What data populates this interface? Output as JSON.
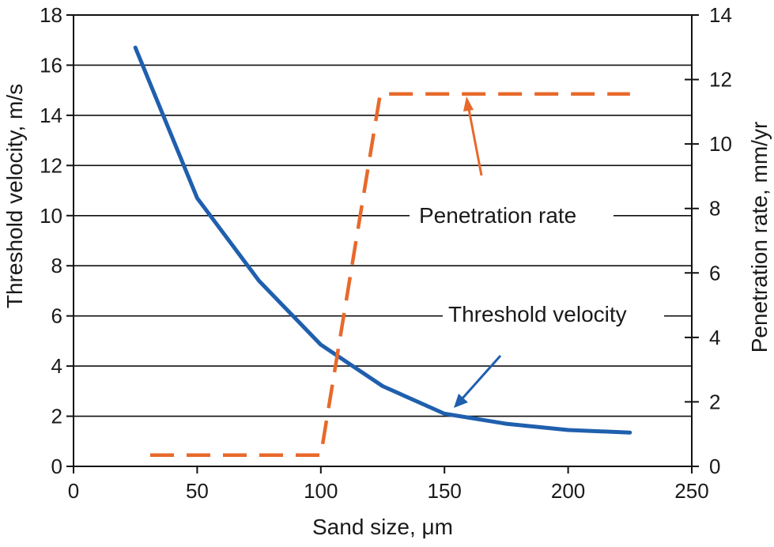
{
  "chart_data": {
    "type": "line",
    "title": "",
    "xlabel": "Sand size, μm",
    "ylabel_left": "Threshold velocity, m/s",
    "ylabel_right": "Penetration rate, mm/yr",
    "xlim": [
      0,
      250
    ],
    "ylim_left": [
      0,
      18
    ],
    "ylim_right": [
      0,
      14
    ],
    "x_ticks": [
      "0",
      "50",
      "100",
      "150",
      "200",
      "250"
    ],
    "y_ticks_left": [
      "0",
      "2",
      "4",
      "6",
      "8",
      "10",
      "12",
      "14",
      "16",
      "18"
    ],
    "y_ticks_right": [
      "0",
      "2",
      "4",
      "6",
      "8",
      "10",
      "12",
      "14"
    ],
    "grid": "horizontal",
    "series": [
      {
        "name": "Threshold velocity",
        "axis": "left",
        "style": "solid",
        "color": "#1f5fae",
        "x": [
          25,
          50,
          75,
          100,
          125,
          150,
          175,
          200,
          225
        ],
        "y": [
          16.7,
          10.7,
          7.4,
          4.85,
          3.2,
          2.1,
          1.7,
          1.45,
          1.35
        ]
      },
      {
        "name": "Penetration rate",
        "axis": "right",
        "style": "dashed",
        "color": "#e8692a",
        "x": [
          31,
          100,
          124,
          225
        ],
        "y": [
          0.35,
          0.35,
          11.55,
          11.55
        ]
      }
    ],
    "annotations": [
      {
        "text": "Penetration rate",
        "series": "Penetration rate"
      },
      {
        "text": "Threshold velocity",
        "series": "Threshold velocity"
      }
    ]
  }
}
